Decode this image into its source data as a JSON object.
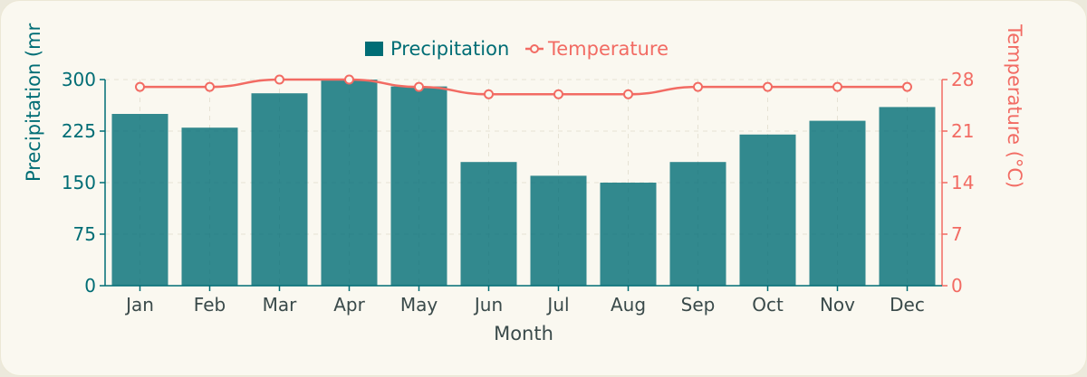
{
  "colors": {
    "precipitation": "#006d75",
    "temperature": "#f26b63",
    "grid": "#e6e2d4",
    "background": "#faf8f0"
  },
  "chart_data": {
    "type": "bar",
    "categories": [
      "Jan",
      "Feb",
      "Mar",
      "Apr",
      "May",
      "Jun",
      "Jul",
      "Aug",
      "Sep",
      "Oct",
      "Nov",
      "Dec"
    ],
    "series": [
      {
        "name": "Precipitation",
        "type": "bar",
        "axis": "left",
        "values": [
          250,
          230,
          280,
          300,
          290,
          180,
          160,
          150,
          180,
          220,
          240,
          260
        ]
      },
      {
        "name": "Temperature",
        "type": "line",
        "axis": "right",
        "values": [
          27,
          27,
          28,
          28,
          27,
          26,
          26,
          26,
          27,
          27,
          27,
          27
        ]
      }
    ],
    "xlabel": "Month",
    "ylabel_left": "Precipitation (mr",
    "ylabel_right": "Temperature (°C)",
    "ylim_left": [
      0,
      300
    ],
    "ylim_right": [
      0,
      28
    ],
    "yticks_left": [
      "0",
      "75",
      "150",
      "225",
      "300"
    ],
    "yticks_right": [
      "0",
      "7",
      "14",
      "21",
      "28"
    ],
    "grid": true,
    "legend_position": "top-center"
  }
}
